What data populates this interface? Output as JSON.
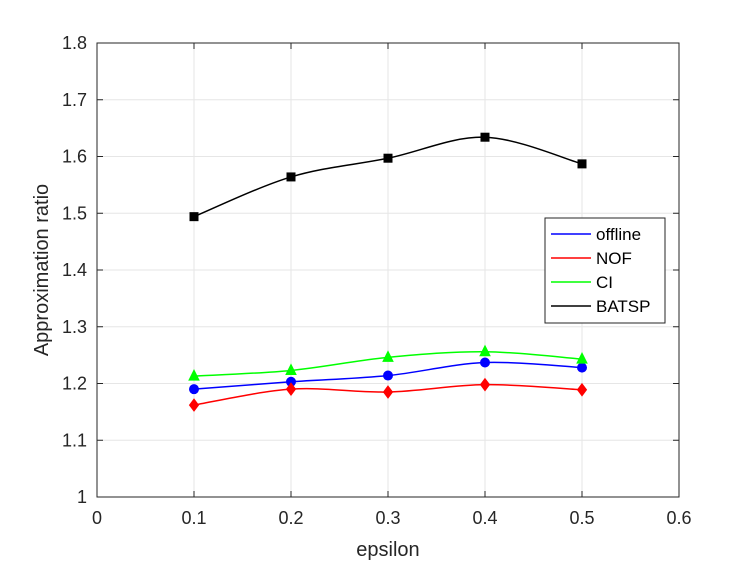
{
  "chart_data": {
    "type": "line",
    "title": "",
    "xlabel": "epsilon",
    "ylabel": "Approximation ratio",
    "xlim": [
      0,
      0.6
    ],
    "ylim": [
      1,
      1.8
    ],
    "xticks": [
      "0",
      "0.1",
      "0.2",
      "0.3",
      "0.4",
      "0.5",
      "0.6"
    ],
    "yticks": [
      "1",
      "1.1",
      "1.2",
      "1.3",
      "1.4",
      "1.5",
      "1.6",
      "1.7",
      "1.8"
    ],
    "grid": true,
    "legend_position": "right-middle",
    "x": [
      0.1,
      0.2,
      0.3,
      0.4,
      0.5
    ],
    "series": [
      {
        "name": "offline",
        "color": "#0000ff",
        "marker": "circle",
        "values": [
          1.19,
          1.203,
          1.214,
          1.237,
          1.228
        ]
      },
      {
        "name": "NOF",
        "color": "#ff0000",
        "marker": "diamond",
        "values": [
          1.162,
          1.19,
          1.185,
          1.198,
          1.189
        ]
      },
      {
        "name": "CI",
        "color": "#00ff00",
        "marker": "triangle",
        "values": [
          1.213,
          1.223,
          1.246,
          1.256,
          1.243
        ]
      },
      {
        "name": "BATSP",
        "color": "#000000",
        "marker": "square",
        "values": [
          1.494,
          1.564,
          1.597,
          1.634,
          1.587
        ]
      }
    ]
  }
}
